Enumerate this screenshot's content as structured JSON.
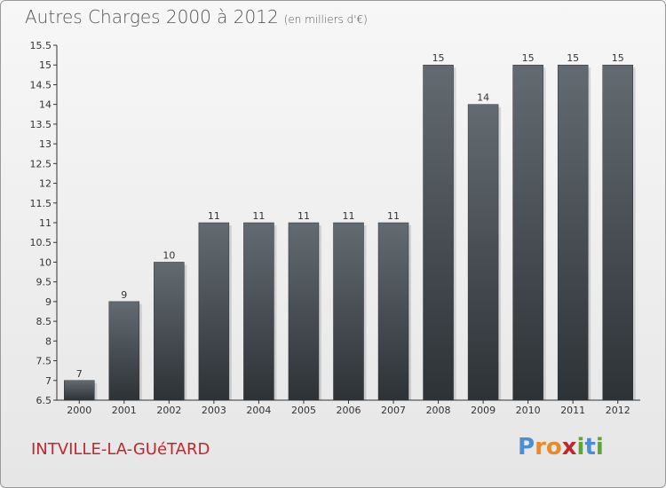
{
  "header": {
    "title": "Autres Charges 2000 à 2012",
    "subtitle": "(en milliers d'€)"
  },
  "footer": {
    "commune": "INTVILLE-LA-GUéTARD",
    "logo": [
      "P",
      "r",
      "o",
      "x",
      "i",
      "t",
      "i"
    ],
    "logo_colors": [
      "#4a8fd4",
      "#e8892b",
      "#e8892b",
      "#c0272d",
      "#5aa832",
      "#4a8fd4",
      "#5aa832"
    ]
  },
  "chart_data": {
    "type": "bar",
    "title": "Autres Charges 2000 à 2012",
    "subtitle": "(en milliers d'€)",
    "categories": [
      "2000",
      "2001",
      "2002",
      "2003",
      "2004",
      "2005",
      "2006",
      "2007",
      "2008",
      "2009",
      "2010",
      "2011",
      "2012"
    ],
    "values": [
      7,
      9,
      10,
      11,
      11,
      11,
      11,
      11,
      15,
      14,
      15,
      15,
      15
    ],
    "ylim": [
      6.5,
      15.5
    ],
    "yticks": [
      "6.5",
      "7",
      "7.5",
      "8",
      "8.5",
      "9",
      "9.5",
      "10",
      "10.5",
      "11",
      "11.5",
      "12",
      "12.5",
      "13",
      "13.5",
      "14",
      "14.5",
      "15",
      "15.5"
    ],
    "grid": false,
    "bar_color_top": "#636b72",
    "bar_color_bottom": "#2d3236"
  }
}
